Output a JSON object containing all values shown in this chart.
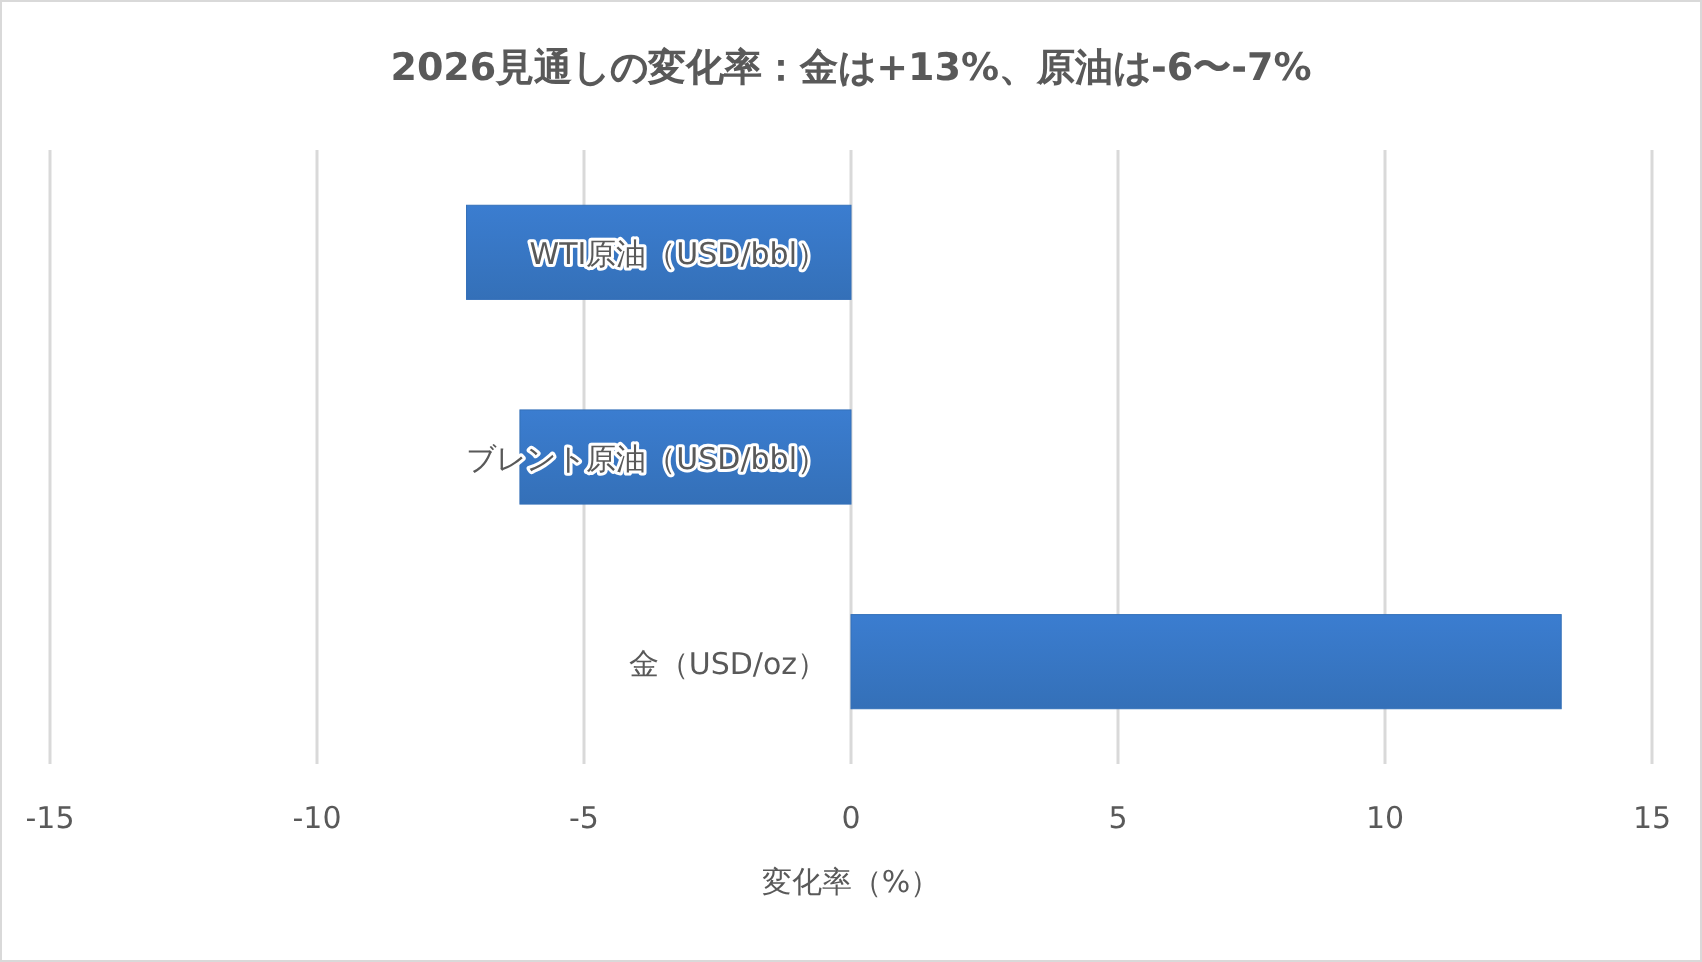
{
  "chart_data": {
    "type": "bar",
    "orientation": "horizontal",
    "title": "2026見通しの変化率：金は+13%、原油は-6〜-7%",
    "xlabel": "変化率（%）",
    "categories": [
      "WTI原油（USD/bbl）",
      "ブレント原油（USD/bbl）",
      "金（USD/oz）"
    ],
    "values": [
      -7.2,
      -6.2,
      13.3
    ],
    "color": "#3470b8",
    "xlim": [
      -15,
      15
    ],
    "xticks": [
      -15,
      -10,
      -5,
      0,
      5,
      10,
      15
    ],
    "grid": "x"
  }
}
